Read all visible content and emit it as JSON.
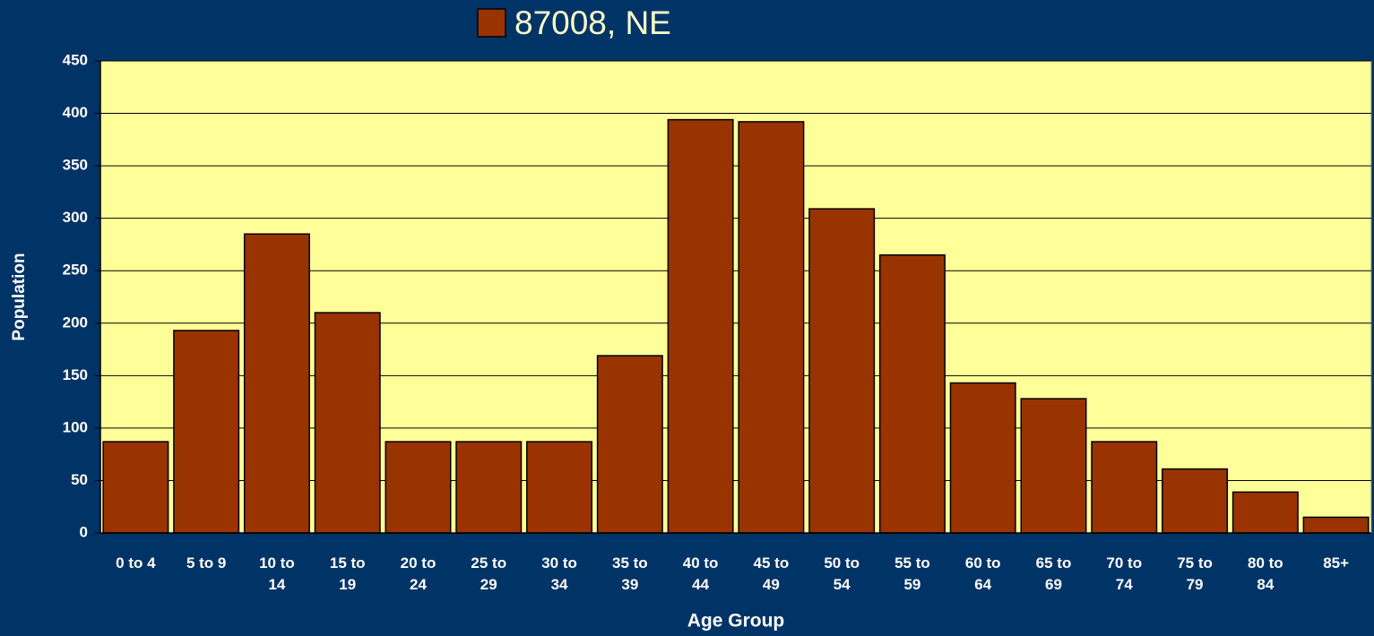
{
  "chart_data": {
    "type": "bar",
    "series": [
      {
        "name": "87008, NE",
        "color": "#993300",
        "values": [
          87,
          193,
          285,
          210,
          87,
          87,
          87,
          169,
          394,
          392,
          309,
          265,
          143,
          128,
          87,
          61,
          39,
          15
        ]
      }
    ],
    "categories": [
      "0 to 4",
      "5 to 9",
      "10 to 14",
      "15 to 19",
      "20 to 24",
      "25 to 29",
      "30 to 34",
      "35 to 39",
      "40 to 44",
      "45 to 49",
      "50 to 54",
      "55 to 59",
      "60 to 64",
      "65 to 69",
      "70 to 74",
      "75 to 79",
      "80 to 84",
      "85+"
    ],
    "x_label": "Age Group",
    "y_label": "Population",
    "ylim": [
      0,
      450
    ],
    "yticks": [
      0,
      50,
      100,
      150,
      200,
      250,
      300,
      350,
      400,
      450
    ],
    "grid": true,
    "legend": "top",
    "plot_background": "#ffff99"
  }
}
